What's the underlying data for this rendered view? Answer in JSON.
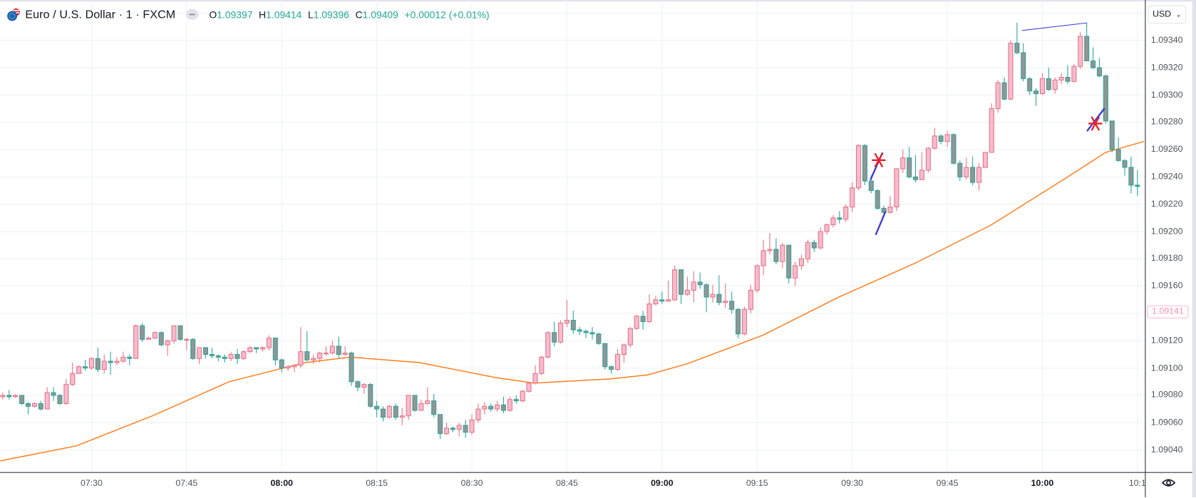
{
  "header": {
    "symbol_title": "Euro / U.S. Dollar · 1 · FXCM",
    "open_label": "O",
    "open_value": "1.09397",
    "high_label": "H",
    "high_value": "1.09414",
    "low_label": "L",
    "low_value": "1.09396",
    "close_label": "C",
    "close_value": "1.09409",
    "change": "+0.00012 (+0.01%)"
  },
  "price_axis": {
    "currency": "USD",
    "labels": [
      "1.09340",
      "1.09320",
      "1.09300",
      "1.09280",
      "1.09260",
      "1.09240",
      "1.09220",
      "1.09200",
      "1.09180",
      "1.09160",
      "1.09120",
      "1.09100",
      "1.09080",
      "1.09060",
      "1.09040"
    ],
    "current_price_label": "1.09141"
  },
  "time_axis": {
    "labels": [
      {
        "text": "07:30",
        "bold": false
      },
      {
        "text": "07:45",
        "bold": false
      },
      {
        "text": "08:00",
        "bold": true
      },
      {
        "text": "08:15",
        "bold": false
      },
      {
        "text": "08:30",
        "bold": false
      },
      {
        "text": "08:45",
        "bold": false
      },
      {
        "text": "09:00",
        "bold": true
      },
      {
        "text": "09:15",
        "bold": false
      },
      {
        "text": "09:30",
        "bold": false
      },
      {
        "text": "09:45",
        "bold": false
      },
      {
        "text": "10:00",
        "bold": true
      },
      {
        "text": "10:1",
        "bold": false
      }
    ]
  },
  "colors": {
    "up_body": "#f8bbd0",
    "up_border": "#e57382",
    "down_body": "#949494",
    "down_border": "#26a69a",
    "ma_line": "#ff7f1e",
    "drawing_blue": "#3d3dd1",
    "drawing_red": "#e8202a",
    "ohlc_value": "#22ab94"
  },
  "chart_data": {
    "type": "candlestick",
    "title": "Euro / U.S. Dollar · 1 · FXCM",
    "interval_minutes": 1,
    "first_bar_time": "07:16",
    "ylim": [
      1.09025,
      1.09365
    ],
    "y_ticks": [
      1.0904,
      1.0906,
      1.0908,
      1.091,
      1.0912,
      1.0914,
      1.0916,
      1.0918,
      1.092,
      1.0922,
      1.0924,
      1.0926,
      1.0928,
      1.093,
      1.0932,
      1.0934
    ],
    "grid": true,
    "first_open": 1.09079,
    "close": [
      1.0908,
      1.09079,
      1.0908,
      1.09074,
      1.09072,
      1.09074,
      1.0907,
      1.09082,
      1.0908,
      1.09074,
      1.09088,
      1.09096,
      1.09101,
      1.091,
      1.09107,
      1.09099,
      1.09105,
      1.09104,
      1.09105,
      1.09108,
      1.09107,
      1.09131,
      1.09121,
      1.09122,
      1.09126,
      1.09117,
      1.0912,
      1.09131,
      1.09121,
      1.09121,
      1.09107,
      1.09115,
      1.0911,
      1.09109,
      1.09108,
      1.09107,
      1.0911,
      1.09107,
      1.09112,
      1.09115,
      1.09114,
      1.09115,
      1.09122,
      1.09106,
      1.091,
      1.09101,
      1.09102,
      1.09112,
      1.09106,
      1.09107,
      1.09111,
      1.09111,
      1.09116,
      1.0911,
      1.09111,
      1.0909,
      1.09086,
      1.09088,
      1.09072,
      1.0907,
      1.09064,
      1.09072,
      1.09064,
      1.09065,
      1.0908,
      1.09069,
      1.09074,
      1.09076,
      1.09066,
      1.09052,
      1.09056,
      1.09055,
      1.09058,
      1.09053,
      1.09062,
      1.0907,
      1.09072,
      1.0907,
      1.09073,
      1.09069,
      1.09077,
      1.09076,
      1.09083,
      1.09089,
      1.09096,
      1.09108,
      1.09126,
      1.09119,
      1.09133,
      1.09135,
      1.09128,
      1.09127,
      1.09126,
      1.09125,
      1.09118,
      1.09101,
      1.09099,
      1.0911,
      1.09117,
      1.09129,
      1.09138,
      1.09134,
      1.09147,
      1.0915,
      1.09149,
      1.0915,
      1.09172,
      1.09154,
      1.09157,
      1.09163,
      1.09161,
      1.09152,
      1.09154,
      1.09148,
      1.09149,
      1.09143,
      1.09125,
      1.09143,
      1.09157,
      1.09175,
      1.09186,
      1.09187,
      1.09178,
      1.0919,
      1.09166,
      1.09175,
      1.0918,
      1.09192,
      1.09188,
      1.092,
      1.09205,
      1.0921,
      1.09209,
      1.09218,
      1.09232,
      1.09263,
      1.09237,
      1.0923,
      1.09217,
      1.09214,
      1.09218,
      1.09246,
      1.09254,
      1.0924,
      1.09238,
      1.09245,
      1.09261,
      1.0927,
      1.09266,
      1.09271,
      1.0925,
      1.0924,
      1.09247,
      1.09236,
      1.09247,
      1.09258,
      1.0929,
      1.09309,
      1.09297,
      1.09338,
      1.09331,
      1.09312,
      1.09303,
      1.09301,
      1.09312,
      1.09304,
      1.09311,
      1.09313,
      1.0931,
      1.09321,
      1.09343,
      1.09325,
      1.0932,
      1.09314,
      1.09281,
      1.0926,
      1.09252,
      1.09247,
      1.09234,
      1.09233
    ],
    "high": [
      1.09082,
      1.09084,
      1.09081,
      1.0908,
      1.09075,
      1.09075,
      1.09076,
      1.09086,
      1.09086,
      1.09081,
      1.09092,
      1.09104,
      1.09102,
      1.09106,
      1.09108,
      1.09115,
      1.0911,
      1.09112,
      1.09108,
      1.09112,
      1.0911,
      1.09132,
      1.09133,
      1.09123,
      1.09127,
      1.09127,
      1.09121,
      1.09131,
      1.09131,
      1.09122,
      1.09122,
      1.09115,
      1.09115,
      1.09115,
      1.0911,
      1.0911,
      1.09112,
      1.09114,
      1.09113,
      1.09116,
      1.09115,
      1.09116,
      1.09124,
      1.09122,
      1.09107,
      1.09102,
      1.09103,
      1.0913,
      1.09127,
      1.0911,
      1.09112,
      1.09116,
      1.0912,
      1.09123,
      1.09116,
      1.09112,
      1.09091,
      1.09089,
      1.09089,
      1.09076,
      1.09072,
      1.09073,
      1.09074,
      1.09071,
      1.0908,
      1.0908,
      1.09077,
      1.09086,
      1.09081,
      1.09066,
      1.0906,
      1.09057,
      1.0906,
      1.09062,
      1.09066,
      1.09074,
      1.09075,
      1.09074,
      1.09076,
      1.09079,
      1.09079,
      1.0908,
      1.09084,
      1.0909,
      1.09102,
      1.09109,
      1.09127,
      1.09134,
      1.09135,
      1.0915,
      1.09142,
      1.0913,
      1.09128,
      1.0913,
      1.09126,
      1.09118,
      1.09102,
      1.09114,
      1.09118,
      1.0913,
      1.09139,
      1.09142,
      1.09154,
      1.09153,
      1.09156,
      1.09164,
      1.09175,
      1.09172,
      1.09167,
      1.09171,
      1.0917,
      1.09162,
      1.09161,
      1.09168,
      1.09162,
      1.09156,
      1.09144,
      1.09145,
      1.09161,
      1.09176,
      1.09194,
      1.09199,
      1.09195,
      1.09192,
      1.0919,
      1.09178,
      1.09183,
      1.09194,
      1.09194,
      1.09203,
      1.09206,
      1.09212,
      1.09215,
      1.0922,
      1.09236,
      1.09264,
      1.09264,
      1.09241,
      1.09231,
      1.09219,
      1.09226,
      1.09246,
      1.0926,
      1.09262,
      1.09256,
      1.09258,
      1.09262,
      1.09276,
      1.09271,
      1.09274,
      1.09272,
      1.09252,
      1.09254,
      1.09255,
      1.0925,
      1.09258,
      1.09294,
      1.09311,
      1.09313,
      1.0934,
      1.09353,
      1.09338,
      1.09313,
      1.09305,
      1.09316,
      1.0932,
      1.09313,
      1.09316,
      1.09322,
      1.09323,
      1.09346,
      1.09353,
      1.09335,
      1.09327,
      1.09315,
      1.09281,
      1.09269,
      1.09253,
      1.09255,
      1.09245
    ],
    "low": [
      1.09077,
      1.09077,
      1.09078,
      1.09073,
      1.09066,
      1.09071,
      1.09069,
      1.0907,
      1.09076,
      1.09073,
      1.09073,
      1.09087,
      1.09098,
      1.09098,
      1.09099,
      1.09097,
      1.09096,
      1.09095,
      1.09102,
      1.09104,
      1.09102,
      1.09107,
      1.09119,
      1.09121,
      1.09121,
      1.09116,
      1.09109,
      1.09118,
      1.0912,
      1.09113,
      1.09106,
      1.09103,
      1.09107,
      1.09107,
      1.09105,
      1.09104,
      1.09105,
      1.09103,
      1.09106,
      1.09111,
      1.09111,
      1.09112,
      1.09113,
      1.09102,
      1.09097,
      1.09098,
      1.09097,
      1.091,
      1.09105,
      1.09103,
      1.09104,
      1.09109,
      1.0911,
      1.09107,
      1.09109,
      1.09087,
      1.09083,
      1.09081,
      1.09071,
      1.09064,
      1.09061,
      1.09063,
      1.09062,
      1.09058,
      1.09062,
      1.09068,
      1.0907,
      1.09073,
      1.09064,
      1.09048,
      1.09051,
      1.09053,
      1.0905,
      1.09049,
      1.09051,
      1.0906,
      1.09066,
      1.09068,
      1.09068,
      1.09067,
      1.09068,
      1.09074,
      1.09075,
      1.09082,
      1.09088,
      1.09095,
      1.09107,
      1.09116,
      1.09118,
      1.0913,
      1.09125,
      1.09124,
      1.09122,
      1.09121,
      1.09117,
      1.09099,
      1.09096,
      1.09098,
      1.09104,
      1.09115,
      1.09128,
      1.09128,
      1.09133,
      1.09146,
      1.09147,
      1.09149,
      1.09149,
      1.09147,
      1.09153,
      1.09148,
      1.09158,
      1.09141,
      1.09148,
      1.09146,
      1.09144,
      1.0914,
      1.09122,
      1.09124,
      1.0914,
      1.09155,
      1.09168,
      1.09183,
      1.09176,
      1.09173,
      1.09162,
      1.0916,
      1.09172,
      1.09177,
      1.09185,
      1.09187,
      1.09198,
      1.09203,
      1.09206,
      1.09207,
      1.09214,
      1.0923,
      1.09234,
      1.09228,
      1.09216,
      1.09212,
      1.09213,
      1.09215,
      1.09243,
      1.09239,
      1.09236,
      1.09238,
      1.09243,
      1.0926,
      1.09264,
      1.09262,
      1.09249,
      1.09237,
      1.09238,
      1.09234,
      1.0923,
      1.09247,
      1.09258,
      1.09287,
      1.09296,
      1.09296,
      1.0933,
      1.0931,
      1.093,
      1.09292,
      1.093,
      1.09303,
      1.09301,
      1.09308,
      1.09308,
      1.09309,
      1.09319,
      1.09325,
      1.09319,
      1.09313,
      1.09279,
      1.09258,
      1.09251,
      1.09241,
      1.09228,
      1.09226
    ],
    "moving_average": {
      "points": [
        [
          -0.4,
          1.09032
        ],
        [
          11.6,
          1.09043
        ],
        [
          23.6,
          1.09065
        ],
        [
          35.7,
          1.0909
        ],
        [
          47.7,
          1.09104
        ],
        [
          54.9,
          1.09108
        ],
        [
          65.7,
          1.09104
        ],
        [
          77.8,
          1.09093
        ],
        [
          83.8,
          1.09089
        ],
        [
          95.8,
          1.09092
        ],
        [
          101.8,
          1.09095
        ],
        [
          107.9,
          1.09103
        ],
        [
          119.9,
          1.09124
        ],
        [
          131.9,
          1.09152
        ],
        [
          144,
          1.09177
        ],
        [
          156,
          1.09205
        ],
        [
          168,
          1.0924
        ],
        [
          174,
          1.09258
        ],
        [
          180,
          1.09266
        ]
      ]
    },
    "current_price": 1.09141
  }
}
